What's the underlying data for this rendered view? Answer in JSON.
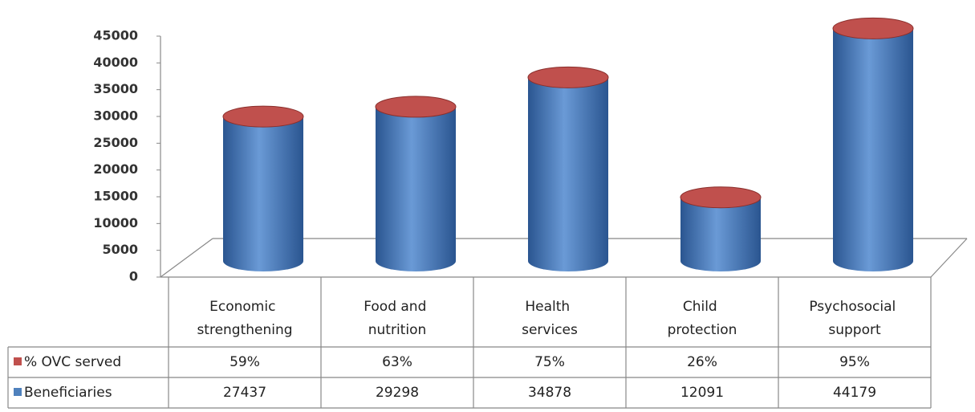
{
  "chart_data": {
    "type": "cylinder3d",
    "categories": [
      "Economic strengthening",
      "Food and nutrition",
      "Health services",
      "Child protection",
      "Psychosocial support"
    ],
    "series": [
      {
        "name": "% OVC served",
        "color": "#c0504d",
        "values": [
          59,
          63,
          75,
          26,
          95
        ],
        "value_labels": [
          "59%",
          "63%",
          "75%",
          "26%",
          "95%"
        ]
      },
      {
        "name": "Beneficiaries",
        "color": "#4f81bd",
        "values": [
          27437,
          29298,
          34878,
          12091,
          44179
        ]
      }
    ],
    "ylim": [
      0,
      45000
    ],
    "yticks": [
      0,
      5000,
      10000,
      15000,
      20000,
      25000,
      30000,
      35000,
      40000,
      45000
    ]
  }
}
